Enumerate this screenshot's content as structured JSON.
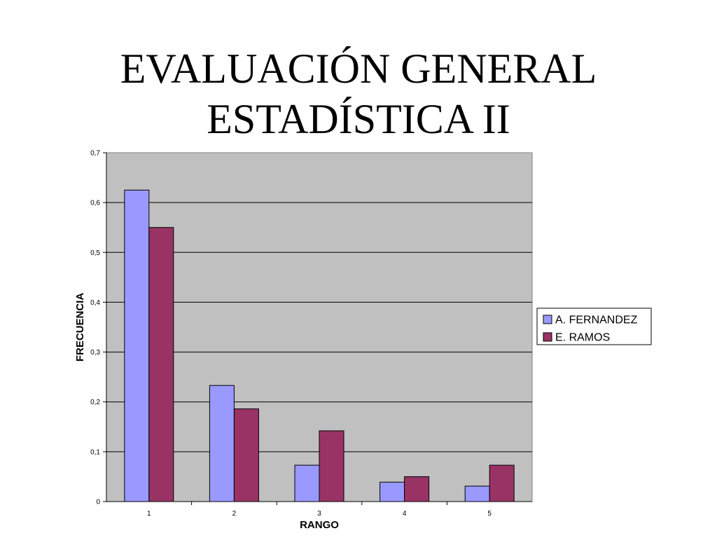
{
  "slide": {
    "title_line1": "EVALUACIÓN GENERAL",
    "title_line2": "ESTADÍSTICA II"
  },
  "chart_data": {
    "type": "bar",
    "categories": [
      "1",
      "2",
      "3",
      "4",
      "5"
    ],
    "series": [
      {
        "name": "A. FERNANDEZ",
        "values": [
          0.625,
          0.233,
          0.073,
          0.039,
          0.031
        ],
        "color": "#9999ff"
      },
      {
        "name": "E. RAMOS",
        "values": [
          0.55,
          0.186,
          0.142,
          0.05,
          0.073
        ],
        "color": "#993366"
      }
    ],
    "xlabel": "RANGO",
    "ylabel": "FRECUENCIA",
    "ylim": [
      0,
      0.7
    ],
    "yticks": [
      "0",
      "0,1",
      "0,2",
      "0,3",
      "0,4",
      "0,5",
      "0,6",
      "0,7"
    ],
    "grid": true,
    "plot_background": "#c0c0c0",
    "legend_position": "right"
  }
}
